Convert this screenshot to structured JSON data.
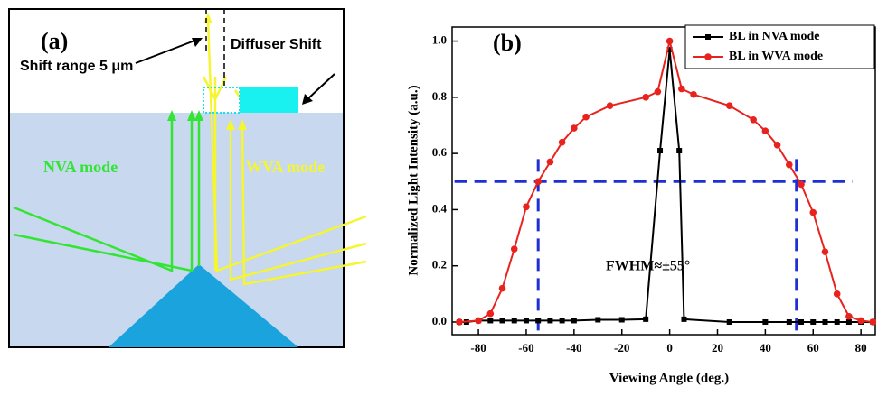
{
  "diagram": {
    "panel_label": "(a)",
    "shift_range": "Shift range 5 μm",
    "diffuser": "Diffuser Shift",
    "nva": "NVA mode",
    "wva": "WVA mode"
  },
  "chart_data": {
    "type": "line",
    "panel_label": "(b)",
    "x_label": "Viewing Angle (deg.)",
    "y_label": "Normalized Light Intensity (a.u.)",
    "annotation": "FWHM≈±55°",
    "xlim": [
      -91,
      86
    ],
    "ylim": [
      -0.045,
      1.05
    ],
    "xticks": [
      -80,
      -60,
      -40,
      -20,
      0,
      20,
      40,
      60,
      80
    ],
    "yticks": [
      {
        "value": 0,
        "label": "0.0"
      },
      {
        "value": 0.2,
        "label": "0.2"
      },
      {
        "value": 0.4,
        "label": "0.4"
      },
      {
        "value": 0.6,
        "label": "0.6"
      },
      {
        "value": 0.8,
        "label": "0.8"
      },
      {
        "value": 1,
        "label": "1.0"
      }
    ],
    "reference_color": "#1f2fd6",
    "hline": 0.5,
    "vlines": [
      -55,
      53
    ],
    "legend": "upper right",
    "series": [
      {
        "name": "BL in NVA mode",
        "color": "#000000",
        "marker": "square",
        "x": [
          -88,
          -85,
          -80,
          -75,
          -70,
          -65,
          -60,
          -55,
          -50,
          -45,
          -40,
          -30,
          -20,
          -10,
          -4,
          0,
          4,
          6,
          25,
          40,
          50,
          55,
          60,
          65,
          70,
          75,
          80,
          85
        ],
        "values": [
          0,
          0,
          0.005,
          0.005,
          0.005,
          0.005,
          0.005,
          0.005,
          0.005,
          0.005,
          0.005,
          0.008,
          0.008,
          0.01,
          0.61,
          0.97,
          0.61,
          0.01,
          0,
          0,
          0,
          0,
          0,
          0,
          0,
          0,
          0,
          0
        ]
      },
      {
        "name": "BL in WVA mode",
        "color": "#e8231e",
        "marker": "circle",
        "x": [
          -88,
          -80,
          -75,
          -70,
          -65,
          -60,
          -55,
          -50,
          -45,
          -40,
          -35,
          -25,
          -10,
          -5,
          0,
          5,
          10,
          25,
          35,
          40,
          45,
          50,
          55,
          60,
          65,
          70,
          75,
          80,
          85
        ],
        "values": [
          0,
          0.005,
          0.03,
          0.12,
          0.26,
          0.41,
          0.5,
          0.57,
          0.64,
          0.69,
          0.73,
          0.77,
          0.8,
          0.82,
          1.0,
          0.83,
          0.81,
          0.77,
          0.72,
          0.68,
          0.63,
          0.56,
          0.49,
          0.39,
          0.25,
          0.1,
          0.02,
          0.005,
          0
        ]
      }
    ]
  }
}
